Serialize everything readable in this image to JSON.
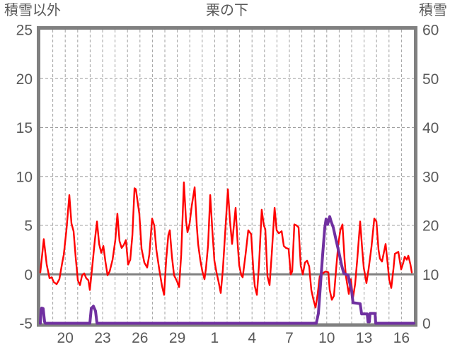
{
  "chart_data": {
    "type": "line",
    "title": "栗の下",
    "legend": "none",
    "grid": true,
    "background": "#FFFFFF",
    "colors": {
      "temperature_line": "#FF0000",
      "snow_depth_line": "#7030A0",
      "frame": "#808080",
      "zero_line": "#808080",
      "gridline": "#A0A0A0",
      "text": "#595959"
    },
    "left_axis": {
      "title": "積雪以外",
      "ticks": [
        25,
        20,
        15,
        10,
        5,
        0,
        -5
      ],
      "min": -5,
      "max": 25,
      "gridline_values": [
        20,
        15,
        10,
        5
      ],
      "zero_line_value": 0
    },
    "right_axis": {
      "title": "積雪",
      "ticks": [
        60,
        50,
        40,
        30,
        20,
        10,
        0
      ],
      "min": 0,
      "max": 60
    },
    "x_axis": {
      "tick_labels": [
        "20",
        "23",
        "26",
        "29",
        "1",
        "4",
        "7",
        "10",
        "13",
        "16"
      ],
      "tick_positions_days": [
        2,
        5,
        8,
        11,
        14,
        17,
        20,
        23,
        26,
        29
      ],
      "min_day": 0,
      "max_day": 30,
      "gridline_interval_days": 1
    },
    "series": [
      {
        "name": "積雪以外",
        "axis": "left",
        "color": "#FF0000",
        "stroke_width": 2.4,
        "points": [
          [
            0,
            0.2
          ],
          [
            0.28,
            3.6
          ],
          [
            0.51,
            1
          ],
          [
            0.74,
            -0.4
          ],
          [
            0.91,
            -0.3
          ],
          [
            1.08,
            -0.8
          ],
          [
            1.31,
            -1
          ],
          [
            1.53,
            -0.5
          ],
          [
            1.76,
            1.2
          ],
          [
            1.88,
            2
          ],
          [
            2.1,
            4.6
          ],
          [
            2.33,
            8.1
          ],
          [
            2.5,
            5.2
          ],
          [
            2.67,
            4.4
          ],
          [
            2.84,
            1.7
          ],
          [
            3.01,
            -0.6
          ],
          [
            3.18,
            -1.1
          ],
          [
            3.35,
            -0.1
          ],
          [
            3.52,
            0.1
          ],
          [
            3.69,
            -0.4
          ],
          [
            3.86,
            -0.6
          ],
          [
            3.98,
            -1.6
          ],
          [
            4.15,
            0.5
          ],
          [
            4.38,
            3.5
          ],
          [
            4.55,
            5.4
          ],
          [
            4.72,
            3.1
          ],
          [
            4.89,
            2.2
          ],
          [
            5.06,
            2.9
          ],
          [
            5.23,
            1.3
          ],
          [
            5.4,
            -0.1
          ],
          [
            5.57,
            0.3
          ],
          [
            5.8,
            1.5
          ],
          [
            6.02,
            3.5
          ],
          [
            6.19,
            6.2
          ],
          [
            6.36,
            3.4
          ],
          [
            6.53,
            2.7
          ],
          [
            6.7,
            3
          ],
          [
            6.87,
            3.5
          ],
          [
            7.05,
            1
          ],
          [
            7.22,
            1.5
          ],
          [
            7.39,
            4
          ],
          [
            7.56,
            8.8
          ],
          [
            7.67,
            8.7
          ],
          [
            7.95,
            6.2
          ],
          [
            8.13,
            2.6
          ],
          [
            8.35,
            1.2
          ],
          [
            8.58,
            0.7
          ],
          [
            8.75,
            2
          ],
          [
            8.98,
            5.7
          ],
          [
            9.15,
            5
          ],
          [
            9.32,
            2.5
          ],
          [
            9.55,
            0.5
          ],
          [
            9.77,
            -1.2
          ],
          [
            9.94,
            -2.1
          ],
          [
            10.11,
            1.5
          ],
          [
            10.28,
            4
          ],
          [
            10.4,
            4.5
          ],
          [
            10.57,
            1.8
          ],
          [
            10.74,
            -0.1
          ],
          [
            10.97,
            -0.7
          ],
          [
            11.14,
            -1.3
          ],
          [
            11.31,
            2
          ],
          [
            11.53,
            9.4
          ],
          [
            11.7,
            5.5
          ],
          [
            11.82,
            4.3
          ],
          [
            11.99,
            5.2
          ],
          [
            12.16,
            7
          ],
          [
            12.39,
            8.9
          ],
          [
            12.56,
            5
          ],
          [
            12.67,
            3.1
          ],
          [
            12.84,
            1.5
          ],
          [
            13.01,
            0.3
          ],
          [
            13.18,
            -0.5
          ],
          [
            13.3,
            0.6
          ],
          [
            13.47,
            3
          ],
          [
            13.64,
            8.1
          ],
          [
            13.81,
            4.5
          ],
          [
            13.98,
            1.4
          ],
          [
            14.15,
            0.2
          ],
          [
            14.32,
            -0.8
          ],
          [
            14.49,
            -1.9
          ],
          [
            14.66,
            0.5
          ],
          [
            14.83,
            4
          ],
          [
            15.06,
            8.7
          ],
          [
            15.23,
            5.5
          ],
          [
            15.4,
            3.1
          ],
          [
            15.68,
            6.8
          ],
          [
            15.85,
            3
          ],
          [
            15.97,
            0.9
          ],
          [
            16.14,
            -0.1
          ],
          [
            16.25,
            -0.3
          ],
          [
            16.48,
            2
          ],
          [
            16.7,
            4.5
          ],
          [
            16.93,
            4.1
          ],
          [
            17.1,
            0.5
          ],
          [
            17.22,
            -1.2
          ],
          [
            17.39,
            -2.1
          ],
          [
            17.56,
            1
          ],
          [
            17.78,
            6.6
          ],
          [
            17.95,
            5
          ],
          [
            18.07,
            4.6
          ],
          [
            18.24,
            -0.2
          ],
          [
            18.41,
            -1.1
          ],
          [
            18.58,
            2
          ],
          [
            18.81,
            6.8
          ],
          [
            18.98,
            4.5
          ],
          [
            19.15,
            4.2
          ],
          [
            19.38,
            4.4
          ],
          [
            19.55,
            2.9
          ],
          [
            19.72,
            2.7
          ],
          [
            19.94,
            2.6
          ],
          [
            20.11,
            0
          ],
          [
            20.23,
            0.3
          ],
          [
            20.4,
            5.1
          ],
          [
            20.57,
            5
          ],
          [
            20.74,
            4.8
          ],
          [
            20.91,
            0.9
          ],
          [
            21.08,
            0
          ],
          [
            21.25,
            1.2
          ],
          [
            21.42,
            1.4
          ],
          [
            21.59,
            0.8
          ],
          [
            21.76,
            -1.6
          ],
          [
            21.93,
            -2.6
          ],
          [
            22.1,
            -3.4
          ],
          [
            22.27,
            -2
          ],
          [
            22.44,
            -0.2
          ],
          [
            22.61,
            0
          ],
          [
            22.78,
            0.2
          ],
          [
            22.95,
            0.3
          ],
          [
            23.13,
            0.2
          ],
          [
            23.24,
            -1.6
          ],
          [
            23.41,
            -2.6
          ],
          [
            23.58,
            -2.2
          ],
          [
            23.75,
            0.5
          ],
          [
            23.92,
            3
          ],
          [
            24.09,
            4.5
          ],
          [
            24.26,
            5.1
          ],
          [
            24.43,
            1.5
          ],
          [
            24.54,
            -0.2
          ],
          [
            24.77,
            -2
          ],
          [
            24.94,
            -0.5
          ],
          [
            25.11,
            -2.4
          ],
          [
            25.28,
            -1
          ],
          [
            25.45,
            1.5
          ],
          [
            25.68,
            5.4
          ],
          [
            25.85,
            2.5
          ],
          [
            25.97,
            0.7
          ],
          [
            26.19,
            -0.9
          ],
          [
            26.36,
            0.5
          ],
          [
            26.59,
            2.8
          ],
          [
            26.82,
            5.7
          ],
          [
            26.99,
            5.4
          ],
          [
            27.16,
            2.5
          ],
          [
            27.27,
            1.6
          ],
          [
            27.44,
            1.3
          ],
          [
            27.73,
            3.1
          ],
          [
            27.9,
            1
          ],
          [
            28.01,
            -0.5
          ],
          [
            28.18,
            -1.4
          ],
          [
            28.35,
            0.5
          ],
          [
            28.47,
            2.1
          ],
          [
            28.75,
            2.3
          ],
          [
            28.98,
            0.5
          ],
          [
            29.15,
            1.2
          ],
          [
            29.26,
            1.8
          ],
          [
            29.43,
            1.5
          ],
          [
            29.55,
            1.9
          ],
          [
            29.72,
            1
          ],
          [
            29.83,
            0.2
          ]
        ]
      },
      {
        "name": "積雪",
        "axis": "right",
        "color": "#7030A0",
        "stroke_width": 4,
        "points": [
          [
            0,
            0
          ],
          [
            0.06,
            2.8
          ],
          [
            0.11,
            3.1
          ],
          [
            0.23,
            3
          ],
          [
            0.34,
            0.3
          ],
          [
            0.4,
            0
          ],
          [
            3.98,
            0
          ],
          [
            4.09,
            3
          ],
          [
            4.26,
            3.5
          ],
          [
            4.43,
            2.5
          ],
          [
            4.55,
            0
          ],
          [
            22.16,
            0
          ],
          [
            22.33,
            2
          ],
          [
            22.5,
            8
          ],
          [
            22.67,
            14
          ],
          [
            22.84,
            19.5
          ],
          [
            22.95,
            21.3
          ],
          [
            23.07,
            20.2
          ],
          [
            23.24,
            21.8
          ],
          [
            23.35,
            20.8
          ],
          [
            23.52,
            19.6
          ],
          [
            23.75,
            17
          ],
          [
            23.98,
            14.5
          ],
          [
            24.2,
            11.8
          ],
          [
            24.37,
            10.2
          ],
          [
            24.72,
            9.8
          ],
          [
            24.83,
            8.4
          ],
          [
            25,
            6.6
          ],
          [
            25.11,
            4.2
          ],
          [
            25.68,
            4
          ],
          [
            25.8,
            1.9
          ],
          [
            26.25,
            1.9
          ],
          [
            26.31,
            0.3
          ],
          [
            26.42,
            0.3
          ],
          [
            26.48,
            2
          ],
          [
            26.88,
            2
          ],
          [
            26.93,
            0
          ],
          [
            30,
            0
          ]
        ]
      }
    ]
  }
}
